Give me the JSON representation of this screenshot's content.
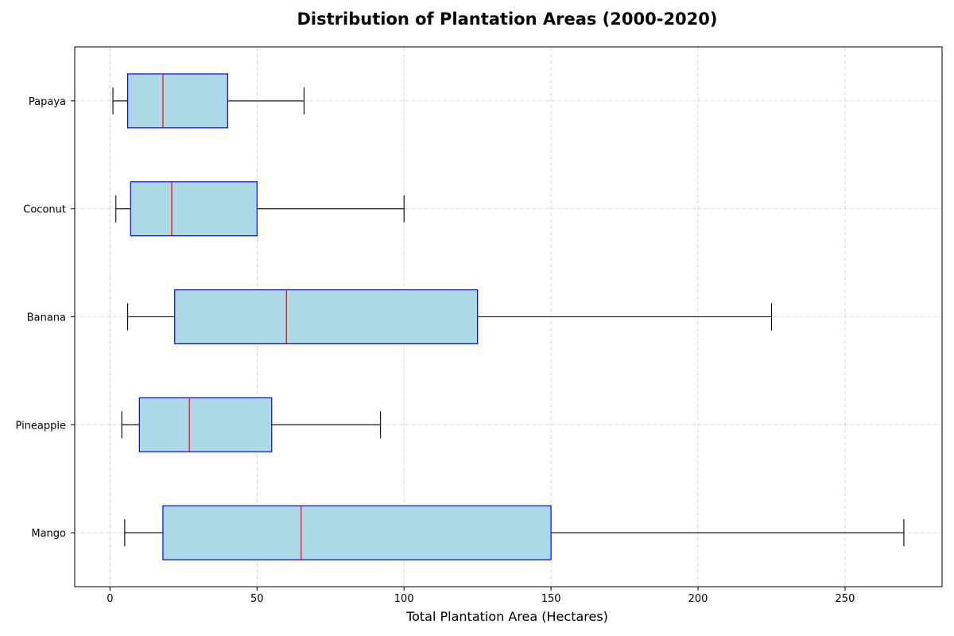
{
  "chart_data": {
    "type": "boxplot",
    "orientation": "horizontal",
    "title": "Distribution of Plantation Areas (2000-2020)",
    "xlabel": "Total Plantation Area (Hectares)",
    "ylabel": "",
    "xlim": [
      -12,
      283
    ],
    "xticks": [
      0,
      50,
      100,
      150,
      200,
      250
    ],
    "grid": true,
    "categories": [
      "Mango",
      "Pineapple",
      "Banana",
      "Coconut",
      "Papaya"
    ],
    "boxes": [
      {
        "category": "Mango",
        "whisker_low": 5,
        "q1": 18,
        "median": 65,
        "q3": 150,
        "whisker_high": 270
      },
      {
        "category": "Pineapple",
        "whisker_low": 4,
        "q1": 10,
        "median": 27,
        "q3": 55,
        "whisker_high": 92
      },
      {
        "category": "Banana",
        "whisker_low": 6,
        "q1": 22,
        "median": 60,
        "q3": 125,
        "whisker_high": 225
      },
      {
        "category": "Coconut",
        "whisker_low": 2,
        "q1": 7,
        "median": 21,
        "q3": 50,
        "whisker_high": 100
      },
      {
        "category": "Papaya",
        "whisker_low": 1,
        "q1": 6,
        "median": 18,
        "q3": 40,
        "whisker_high": 66
      }
    ],
    "colors": {
      "box_fill": "#add8e6",
      "box_edge": "#0000ff",
      "median": "#ff0000",
      "whisker": "#000000"
    }
  }
}
